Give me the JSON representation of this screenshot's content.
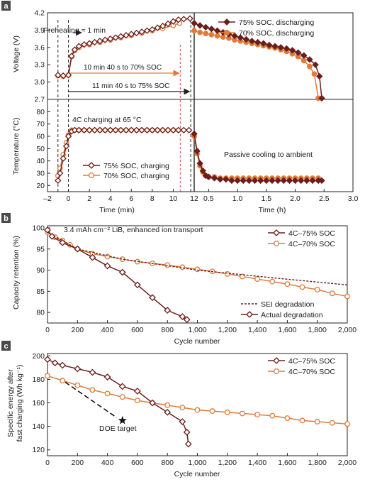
{
  "colors": {
    "dark": "#6b1f1c",
    "orange": "#e07b3a",
    "axis": "#222222",
    "dashed_black": "#222222",
    "red_guide": "#d9453a"
  },
  "panel_a": {
    "label": "a",
    "voltage_axis": {
      "ylabel": "Voltage (V)",
      "ylim": [
        2.7,
        4.2
      ],
      "yticks": [
        "4.2",
        "3.9",
        "3.6",
        "3.3",
        "3.0",
        "2.7"
      ]
    },
    "temperature_axis": {
      "ylabel": "Temperature (°C)",
      "ylim": [
        15,
        90
      ],
      "yticks": [
        "80",
        "70",
        "60",
        "50",
        "40",
        "30",
        "20"
      ]
    },
    "xaxis_min": {
      "xlabel": "Time (min)",
      "xlim": [
        -2,
        12
      ],
      "xticks": [
        "–2",
        "0",
        "2",
        "4",
        "6",
        "8",
        "10",
        "12"
      ]
    },
    "xaxis_h": {
      "xlabel": "Time (h)",
      "xlim": [
        0.25,
        3.0
      ],
      "xticks": [
        "0.5",
        "1.0",
        "1.5",
        "2.0",
        "2.5",
        "3.0"
      ]
    },
    "annotations": {
      "preheat": "Preheating ≈ 1 min",
      "to70": "10 min 40 s to 70% SOC",
      "to75": "11 min 40 s to 75% SOC",
      "charging": "4C charging at 65 °C",
      "cooling": "Passive cooling to ambient"
    },
    "legend_top": [
      "75% SOC, discharging",
      "70% SOC, discharging"
    ],
    "legend_bottom": [
      "75% SOC, charging",
      "70% SOC, charging"
    ]
  },
  "panel_b": {
    "label": "b",
    "ylabel": "Capacity retention (%)",
    "xlabel": "Cycle number",
    "ylim": [
      77.5,
      100.5
    ],
    "xlim": [
      0,
      2000
    ],
    "yticks": [
      "100",
      "95",
      "90",
      "85",
      "80"
    ],
    "xticks": [
      "0",
      "200",
      "400",
      "600",
      "800",
      "1,000",
      "1,200",
      "1,400",
      "1,600",
      "1,800",
      "2,000"
    ],
    "note": "3.4 mAh cm⁻² LiB, enhanced ion transport",
    "legend_series": [
      "4C–75% SOC",
      "4C–70% SOC"
    ],
    "legend_lines": [
      "SEI degradation",
      "Actual degradation"
    ]
  },
  "panel_c": {
    "label": "c",
    "ylabel": "Specific energy after fast charging (Wh kg⁻¹)",
    "ylabel_line1": "Specific energy after",
    "ylabel_line2": "fast charging (Wh kg⁻¹)",
    "xlabel": "Cycle number",
    "ylim": [
      115,
      202
    ],
    "xlim": [
      0,
      2000
    ],
    "yticks": [
      "200",
      "180",
      "160",
      "140",
      "120"
    ],
    "xticks": [
      "0",
      "200",
      "400",
      "600",
      "800",
      "1,000",
      "1,200",
      "1,400",
      "1,600",
      "1,800",
      "2,000"
    ],
    "legend_series": [
      "4C–75% SOC",
      "4C–70% SOC"
    ],
    "doe_label": "DOE target"
  },
  "chart_data": [
    {
      "type": "line",
      "panel": "a-voltage-min",
      "series": [
        {
          "name": "75% SOC",
          "x": [
            -1.0,
            -0.5,
            0.0,
            0.3,
            0.6,
            1.0,
            1.5,
            2.0,
            2.5,
            3.0,
            3.5,
            4.0,
            4.5,
            5.0,
            5.5,
            6.0,
            6.5,
            7.0,
            7.5,
            8.0,
            8.5,
            9.0,
            9.5,
            10.0,
            10.5,
            11.0,
            11.6
          ],
          "y": [
            3.12,
            3.11,
            3.12,
            3.45,
            3.56,
            3.62,
            3.65,
            3.67,
            3.69,
            3.71,
            3.73,
            3.75,
            3.77,
            3.79,
            3.81,
            3.83,
            3.85,
            3.87,
            3.89,
            3.91,
            3.94,
            3.97,
            4.01,
            4.05,
            4.08,
            4.09,
            4.1
          ]
        },
        {
          "name": "70% SOC",
          "x": [
            -1.0,
            -0.5,
            0.0,
            0.3,
            0.6,
            1.0,
            2.0,
            3.0,
            4.0,
            5.0,
            6.0,
            7.0,
            8.0,
            9.0,
            10.0,
            10.6
          ],
          "y": [
            3.11,
            3.1,
            3.12,
            3.44,
            3.55,
            3.6,
            3.65,
            3.69,
            3.73,
            3.77,
            3.81,
            3.85,
            3.89,
            3.93,
            3.98,
            4.02
          ]
        }
      ]
    },
    {
      "type": "line",
      "panel": "a-voltage-h",
      "series": [
        {
          "name": "75% SOC, discharging",
          "x": [
            0.25,
            0.35,
            0.45,
            0.55,
            0.65,
            0.75,
            0.85,
            0.95,
            1.05,
            1.15,
            1.25,
            1.35,
            1.45,
            1.55,
            1.65,
            1.75,
            1.85,
            1.95,
            2.05,
            2.15,
            2.25,
            2.35,
            2.42,
            2.46
          ],
          "y": [
            4.02,
            3.98,
            3.95,
            3.92,
            3.89,
            3.86,
            3.83,
            3.8,
            3.77,
            3.74,
            3.71,
            3.69,
            3.67,
            3.64,
            3.62,
            3.6,
            3.58,
            3.55,
            3.51,
            3.46,
            3.39,
            3.3,
            3.1,
            2.72
          ]
        },
        {
          "name": "70% SOC, discharging",
          "x": [
            0.25,
            0.35,
            0.45,
            0.55,
            0.65,
            0.75,
            0.85,
            0.95,
            1.05,
            1.15,
            1.25,
            1.35,
            1.45,
            1.55,
            1.65,
            1.75,
            1.85,
            1.95,
            2.05,
            2.15,
            2.25,
            2.33,
            2.4
          ],
          "y": [
            3.89,
            3.86,
            3.84,
            3.82,
            3.8,
            3.78,
            3.76,
            3.73,
            3.71,
            3.69,
            3.67,
            3.65,
            3.63,
            3.61,
            3.59,
            3.56,
            3.53,
            3.49,
            3.44,
            3.37,
            3.27,
            3.14,
            2.72
          ]
        }
      ]
    },
    {
      "type": "line",
      "panel": "a-temperature-min",
      "series": [
        {
          "name": "75% SOC, charging",
          "x": [
            -1.0,
            -0.8,
            -0.5,
            -0.2,
            0.0,
            0.3,
            0.6,
            1.0,
            1.5,
            2.0,
            2.5,
            3.0,
            3.5,
            4.0,
            4.5,
            5.0,
            5.5,
            6.0,
            6.5,
            7.0,
            7.5,
            8.0,
            8.5,
            9.0,
            9.5,
            10.0,
            10.5,
            11.0,
            11.5
          ],
          "y": [
            24,
            30,
            42,
            52,
            60,
            64,
            65,
            65,
            65,
            65,
            65,
            65,
            65,
            65,
            65,
            65,
            65,
            65,
            65,
            65,
            65,
            65,
            65,
            65,
            65,
            65,
            65,
            65,
            65
          ]
        },
        {
          "name": "70% SOC, charging",
          "x": [
            -1.0,
            -0.8,
            -0.5,
            -0.2,
            0.0,
            0.3,
            0.6,
            1.0,
            1.5,
            2.0,
            2.5,
            3.0,
            3.5,
            4.0,
            4.5,
            5.0,
            5.5,
            6.0,
            6.5,
            7.0,
            7.5,
            8.0,
            8.5,
            9.0,
            9.5,
            10.0,
            10.5
          ],
          "y": [
            28,
            34,
            45,
            55,
            61,
            65,
            65,
            65,
            65,
            65,
            65,
            65,
            65,
            65,
            65,
            65,
            65,
            65,
            65,
            65,
            65,
            65,
            65,
            65,
            65,
            65,
            65
          ]
        }
      ]
    },
    {
      "type": "line",
      "panel": "a-temperature-h",
      "series": [
        {
          "name": "75% SOC",
          "x": [
            0.25,
            0.3,
            0.35,
            0.4,
            0.45,
            0.5,
            0.6,
            0.7,
            0.8,
            0.9,
            1.0,
            1.1,
            1.2,
            1.3,
            1.4,
            1.5,
            1.6,
            1.7,
            1.8,
            1.9,
            2.0,
            2.1,
            2.2,
            2.3,
            2.4,
            2.46
          ],
          "y": [
            62,
            48,
            38,
            32,
            28,
            27,
            26,
            25,
            25,
            24,
            24,
            24,
            24,
            24,
            24,
            24,
            24,
            24,
            24,
            24,
            24,
            24,
            24,
            24,
            24,
            24
          ]
        },
        {
          "name": "70% SOC",
          "x": [
            0.25,
            0.3,
            0.35,
            0.4,
            0.45,
            0.5,
            0.6,
            0.7,
            0.8,
            0.9,
            1.0,
            1.1,
            1.2,
            1.3,
            1.4,
            1.5,
            1.6,
            1.7,
            1.8,
            1.9,
            2.0,
            2.1,
            2.2,
            2.3,
            2.4
          ],
          "y": [
            60,
            46,
            36,
            31,
            28,
            27,
            27,
            26,
            26,
            26,
            26,
            26,
            26,
            26,
            26,
            26,
            26,
            26,
            26,
            26,
            26,
            26,
            26,
            26,
            26
          ]
        }
      ]
    },
    {
      "type": "line",
      "panel": "b",
      "title": "",
      "xlabel": "Cycle number",
      "ylabel": "Capacity retention (%)",
      "series": [
        {
          "name": "4C–75% SOC",
          "x": [
            0,
            30,
            100,
            200,
            300,
            400,
            500,
            600,
            700,
            800,
            900,
            930
          ],
          "y": [
            99.5,
            98.0,
            96.5,
            95.0,
            93.0,
            91.0,
            89.5,
            86.5,
            83.5,
            80.5,
            79.0,
            78.3
          ]
        },
        {
          "name": "4C–70% SOC",
          "x": [
            0,
            50,
            100,
            150,
            200,
            300,
            400,
            500,
            600,
            700,
            800,
            900,
            1000,
            1100,
            1200,
            1300,
            1400,
            1500,
            1600,
            1700,
            1800,
            1900,
            2000
          ],
          "y": [
            99.0,
            97.8,
            97.0,
            96.0,
            95.0,
            93.9,
            93.2,
            92.6,
            92.0,
            91.6,
            91.2,
            90.7,
            90.2,
            89.7,
            89.1,
            88.5,
            87.9,
            87.3,
            86.7,
            86.0,
            85.4,
            84.5,
            83.8
          ]
        },
        {
          "name": "SEI degradation",
          "x": [
            0,
            200,
            500,
            1000,
            1500,
            2000
          ],
          "y": [
            99.0,
            95.0,
            92.6,
            90.0,
            88.2,
            86.5
          ]
        }
      ]
    },
    {
      "type": "line",
      "panel": "c",
      "title": "",
      "xlabel": "Cycle number",
      "ylabel": "Specific energy after fast charging (Wh kg⁻¹)",
      "series": [
        {
          "name": "4C–75% SOC",
          "x": [
            0,
            50,
            100,
            200,
            300,
            400,
            500,
            600,
            700,
            800,
            900,
            930,
            940
          ],
          "y": [
            197,
            194,
            192,
            189,
            186,
            182,
            174,
            170,
            160,
            152,
            144,
            135,
            125
          ]
        },
        {
          "name": "4C–70% SOC",
          "x": [
            0,
            100,
            200,
            300,
            400,
            500,
            600,
            700,
            800,
            900,
            1000,
            1100,
            1200,
            1300,
            1400,
            1500,
            1600,
            1700,
            1800,
            1900,
            2000
          ],
          "y": [
            183,
            179,
            175,
            171,
            168,
            165,
            162,
            160,
            158,
            156,
            154,
            153,
            152,
            151,
            150,
            149,
            147,
            145,
            144,
            143,
            142
          ]
        },
        {
          "name": "DOE target",
          "x": [
            0,
            500
          ],
          "y": [
            180,
            145
          ]
        }
      ]
    }
  ]
}
